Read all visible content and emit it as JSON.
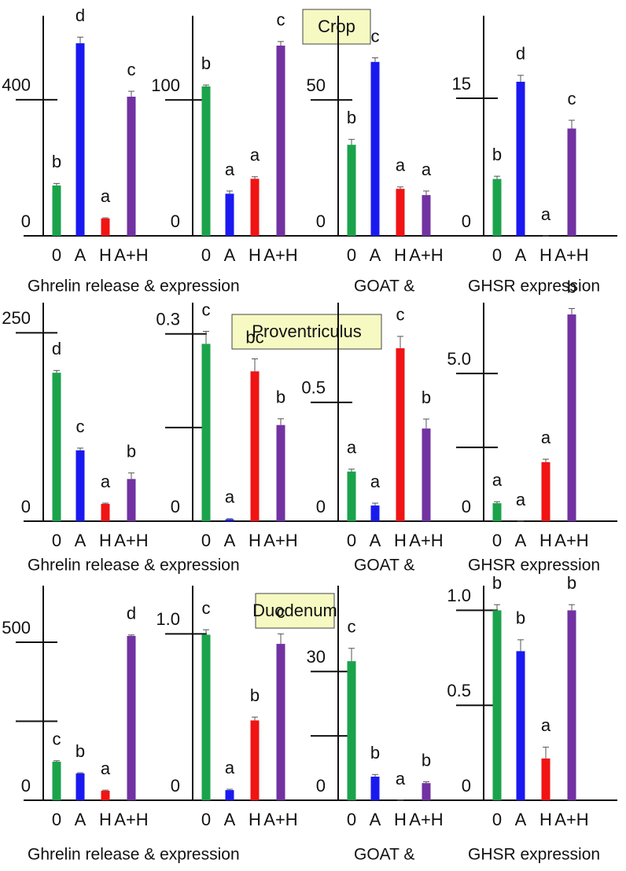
{
  "rows": [
    {
      "title": "Crop",
      "captions": [
        "Ghrelin release & expression",
        "GOAT &",
        "GHSR expression"
      ]
    },
    {
      "title": "Proventriculus",
      "captions": [
        "Ghrelin release & expression",
        "GOAT &",
        "GHSR expression"
      ]
    },
    {
      "title": "Duodenum",
      "captions": [
        "Ghrelin release & expression",
        "GOAT &",
        "GHSR expression"
      ]
    }
  ],
  "chart_data": [
    {
      "type": "bar",
      "categories": [
        "0",
        "A",
        "H",
        "A+H"
      ],
      "colors": [
        "#1ba34b",
        "#1a1af0",
        "#f01414",
        "#7232a2"
      ],
      "values": [
        148,
        566,
        51,
        409
      ],
      "errors": [
        6,
        18,
        2,
        16
      ],
      "annotations": [
        "b",
        "d",
        "a",
        "c"
      ],
      "ylim": [
        0,
        647
      ],
      "yticks": [
        0,
        400
      ]
    },
    {
      "type": "bar",
      "categories": [
        "0",
        "A",
        "H",
        "A+H"
      ],
      "colors": [
        "#1ba34b",
        "#1a1af0",
        "#f01414",
        "#7232a2"
      ],
      "values": [
        110,
        31,
        42,
        140
      ],
      "errors": [
        1,
        2,
        1.5,
        3
      ],
      "annotations": [
        "b",
        "a",
        "a",
        "c"
      ],
      "ylim": [
        0,
        162
      ],
      "yticks": [
        0,
        100
      ]
    },
    {
      "type": "bar",
      "categories": [
        "0",
        "A",
        "H",
        "A+H"
      ],
      "colors": [
        "#1ba34b",
        "#1a1af0",
        "#f01414",
        "#7232a2"
      ],
      "values": [
        33.5,
        64,
        17.3,
        15
      ],
      "errors": [
        2,
        1.5,
        0.7,
        1.5
      ],
      "annotations": [
        "b",
        "c",
        "a",
        "a"
      ],
      "ylim": [
        0,
        81
      ],
      "yticks": [
        0,
        50
      ]
    },
    {
      "type": "bar",
      "categories": [
        "0",
        "A",
        "H",
        "A+H"
      ],
      "colors": [
        "#1ba34b",
        "#1a1af0",
        "#f01414",
        "#7232a2"
      ],
      "values": [
        6.2,
        16.8,
        0,
        11.7
      ],
      "errors": [
        0.3,
        0.7,
        0,
        0.9
      ],
      "annotations": [
        "b",
        "d",
        "a",
        "c"
      ],
      "ylim": [
        0,
        24
      ],
      "yticks": [
        0,
        15
      ]
    },
    {
      "type": "bar",
      "categories": [
        "0",
        "A",
        "H",
        "A+H"
      ],
      "colors": [
        "#1ba34b",
        "#1a1af0",
        "#f01414",
        "#7232a2"
      ],
      "values": [
        197,
        94,
        23,
        56
      ],
      "errors": [
        3,
        3,
        1,
        8
      ],
      "annotations": [
        "d",
        "c",
        "a",
        "b"
      ],
      "ylim": [
        0,
        290
      ],
      "yticks": [
        0,
        250
      ]
    },
    {
      "type": "bar",
      "categories": [
        "0",
        "A",
        "H",
        "A+H"
      ],
      "colors": [
        "#1ba34b",
        "#1a1af0",
        "#f01414",
        "#7232a2"
      ],
      "values": [
        0.284,
        0.003,
        0.24,
        0.154
      ],
      "errors": [
        0.02,
        0.001,
        0.02,
        0.01
      ],
      "annotations": [
        "c",
        "a",
        "bc",
        "b"
      ],
      "ylim": [
        0,
        0.35
      ],
      "yticks": [
        0,
        0.3
      ],
      "minor_yticks": [
        0.15
      ]
    },
    {
      "type": "bar",
      "categories": [
        "0",
        "A",
        "H",
        "A+H"
      ],
      "colors": [
        "#1ba34b",
        "#1a1af0",
        "#f01414",
        "#7232a2"
      ],
      "values": [
        0.209,
        0.066,
        0.728,
        0.39
      ],
      "errors": [
        0.01,
        0.01,
        0.05,
        0.04
      ],
      "annotations": [
        "a",
        "a",
        "c",
        "b"
      ],
      "ylim": [
        0,
        0.92
      ],
      "yticks": [
        0,
        0.5
      ]
    },
    {
      "type": "bar",
      "categories": [
        "0",
        "A",
        "H",
        "A+H"
      ],
      "colors": [
        "#1ba34b",
        "#1a1af0",
        "#f01414",
        "#7232a2"
      ],
      "values": [
        0.61,
        0,
        2.0,
        7.0
      ],
      "errors": [
        0.05,
        0,
        0.1,
        0.2
      ],
      "annotations": [
        "a",
        "a",
        "a",
        "b"
      ],
      "ylim": [
        0,
        7.4
      ],
      "yticks": [
        0,
        {
          "value": 5,
          "label": "5.0"
        }
      ],
      "minor_yticks": [
        2.5
      ]
    },
    {
      "type": "bar",
      "categories": [
        "0",
        "A",
        "H",
        "A+H"
      ],
      "colors": [
        "#1ba34b",
        "#1a1af0",
        "#f01414",
        "#7232a2"
      ],
      "values": [
        122,
        85,
        30,
        520
      ],
      "errors": [
        3,
        2,
        2,
        3
      ],
      "annotations": [
        "c",
        "b",
        "a",
        "d"
      ],
      "ylim": [
        0,
        679
      ],
      "yticks": [
        0,
        500
      ],
      "minor_yticks": [
        250
      ]
    },
    {
      "type": "bar",
      "categories": [
        "0",
        "A",
        "H",
        "A+H"
      ],
      "colors": [
        "#1ba34b",
        "#1a1af0",
        "#f01414",
        "#7232a2"
      ],
      "values": [
        0.995,
        0.061,
        0.48,
        0.94
      ],
      "errors": [
        0.03,
        0.005,
        0.02,
        0.06
      ],
      "annotations": [
        "c",
        "a",
        "b",
        "c"
      ],
      "ylim": [
        0,
        1.29
      ],
      "yticks": [
        0,
        {
          "value": 1,
          "label": "1.0"
        }
      ]
    },
    {
      "type": "bar",
      "categories": [
        "0",
        "A",
        "H",
        "A+H"
      ],
      "colors": [
        "#1ba34b",
        "#1a1af0",
        "#f01414",
        "#7232a2"
      ],
      "values": [
        32.4,
        5.5,
        0,
        4.0
      ],
      "errors": [
        3,
        0.5,
        0,
        0.3
      ],
      "annotations": [
        "c",
        "b",
        "a",
        "b"
      ],
      "ylim": [
        0,
        50
      ],
      "yticks": [
        0,
        30
      ],
      "minor_yticks": [
        15
      ]
    },
    {
      "type": "bar",
      "categories": [
        "0",
        "A",
        "H",
        "A+H"
      ],
      "colors": [
        "#1ba34b",
        "#1a1af0",
        "#f01414",
        "#7232a2"
      ],
      "values": [
        1.0,
        0.785,
        0.22,
        1.0
      ],
      "errors": [
        0.03,
        0.06,
        0.06,
        0.03
      ],
      "annotations": [
        "b",
        "b",
        "a",
        "b"
      ],
      "ylim": [
        0,
        1.13
      ],
      "yticks": [
        0,
        {
          "value": 1,
          "label": "1.0"
        },
        0.5
      ]
    }
  ]
}
